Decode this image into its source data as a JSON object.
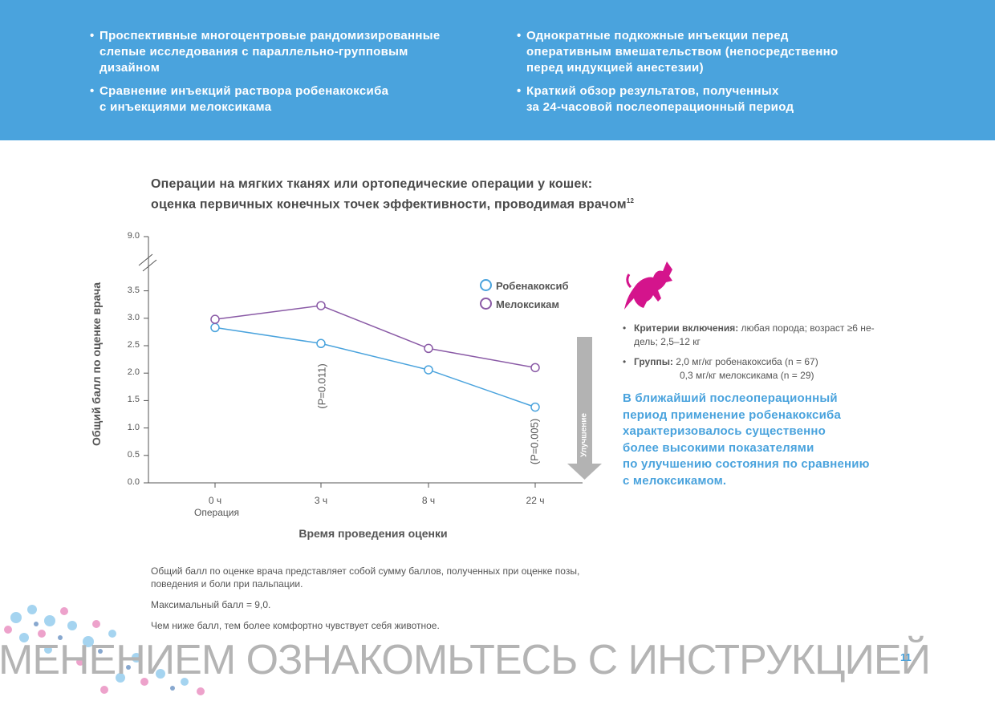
{
  "colors": {
    "accent": "#4aa3dd",
    "robenacoxib": "#4aa3dd",
    "meloxicam": "#8a5aa6",
    "cat": "#d4148c",
    "arrow": "#b3b3b3"
  },
  "banner": {
    "bullets_left": [
      {
        "line1": "Проспективные многоцентровые рандомизированные",
        "line2": "слепые исследования с параллельно-групповым",
        "line3": "дизайном"
      },
      {
        "line1": "Сравнение инъекций раствора робенакоксиба",
        "line2": "с инъекциями мелоксикама",
        "line3": ""
      }
    ],
    "bullets_right": [
      {
        "line1": "Однократные подкожные инъекции перед",
        "line2": "оперативным вмешательством (непосредственно",
        "line3": "перед индукцией анестезии)"
      },
      {
        "line1": "Краткий обзор результатов, полученных",
        "line2": "за 24-часовой послеоперационный период",
        "line3": ""
      }
    ]
  },
  "chart_title": {
    "line1": "Операции на мягких тканях или ортопедические операции у кошек:",
    "line2": "оценка первичных конечных точек эффективности, проводимая врачом",
    "ref": "12"
  },
  "chart_data": {
    "type": "line",
    "ylabel": "Общий балл по оценке врача",
    "xlabel": "Время проведения оценки",
    "categories": [
      "0 ч",
      "3 ч",
      "8 ч",
      "22 ч"
    ],
    "x_sublabel": "Операция",
    "yticks": [
      "0.0",
      "0.5",
      "1.0",
      "1.5",
      "2.0",
      "2.5",
      "3.0",
      "3.5",
      "9.0"
    ],
    "ylim": [
      0,
      9.0
    ],
    "axis_break": "3.5–9.0",
    "series": [
      {
        "name": "Робенакоксиб",
        "values": [
          2.83,
          2.54,
          2.06,
          1.38
        ]
      },
      {
        "name": "Мелоксикам",
        "values": [
          2.98,
          3.23,
          2.45,
          2.1
        ]
      }
    ],
    "annotations": [
      {
        "category": "3 ч",
        "text": "(P=0.011)"
      },
      {
        "category": "22 ч",
        "text": "(P=0.005)"
      }
    ],
    "arrow_label": "Улучшение"
  },
  "side_panel": {
    "criteria_label": "Критерии включения:",
    "criteria_text1": " любая порода; возраст ≥6 не-",
    "criteria_text2": "дель; 2,5–12 кг",
    "groups_label": "Группы:",
    "groups_1": "2,0 мг/кг робенакоксиба (n = 67)",
    "groups_2": "0,3 мг/кг мелоксикама (n = 29)",
    "highlight": [
      "В ближайший послеоперационный",
      "период применение робенакоксиба",
      "характеризовалось существенно",
      "более высокими показателями",
      "по улучшению состояния по сравнению",
      "с мелоксикамом."
    ]
  },
  "notes": {
    "n1": "Общий балл по оценке врача представляет собой сумму баллов, полученных при оценке позы,",
    "n1b": "поведения и боли при пальпации.",
    "n2": "Максимальный балл = 9,0.",
    "n3": "Чем ниже балл, тем более комфортно чувствует себя животное."
  },
  "footer": {
    "text": "МЕНЕНИЕМ ОЗНАКОМЬТЕСЬ С ИНСТРУКЦИЕЙ",
    "page": "11"
  }
}
